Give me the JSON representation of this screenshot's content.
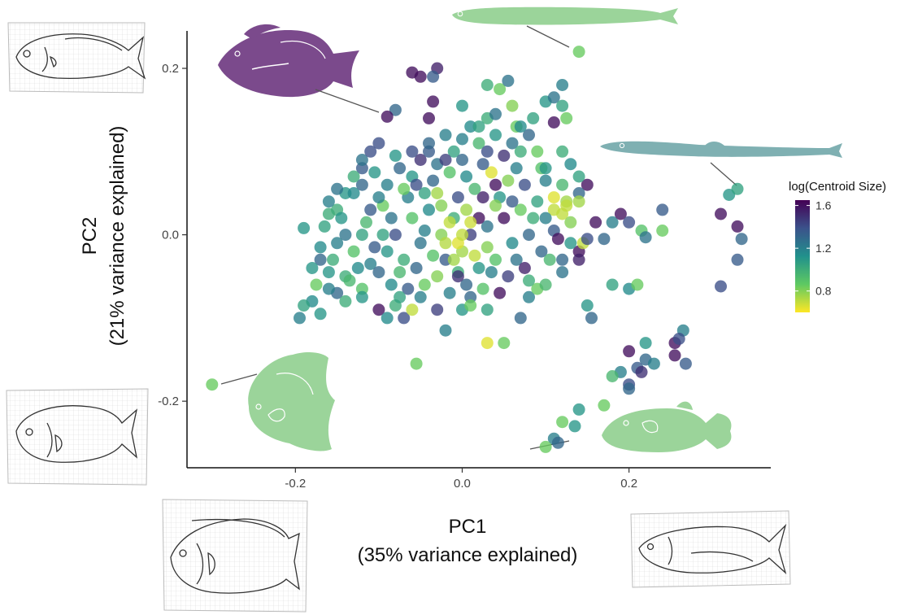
{
  "chart_data": {
    "type": "scatter",
    "title": "",
    "xlabel": "PC1",
    "xlabel_sub": "(35% variance explained)",
    "ylabel": "PC2",
    "ylabel_sub": "(21% variance explained)",
    "xlim": [
      -0.33,
      0.37
    ],
    "ylim": [
      -0.28,
      0.245
    ],
    "xticks": [
      -0.2,
      0.0,
      0.2
    ],
    "yticks": [
      -0.2,
      0.0,
      0.2
    ],
    "xtick_labels": [
      "-0.2",
      "0.0",
      "0.2"
    ],
    "ytick_labels": [
      "-0.2",
      "0.0",
      "0.2"
    ],
    "grid": false,
    "colorbar": {
      "title": "log(Centroid Size)",
      "range": [
        0.6,
        1.65
      ],
      "ticks": [
        0.8,
        1.2,
        1.6
      ],
      "tick_labels": [
        "0.8",
        "1.2",
        "1.6"
      ],
      "colormap": "viridis",
      "placement": "right"
    },
    "highlighted_points": [
      {
        "x": 0.14,
        "y": 0.22,
        "c": 0.85
      },
      {
        "x": -0.09,
        "y": 0.142,
        "c": 1.6
      },
      {
        "x": 0.33,
        "y": 0.055,
        "c": 1.05
      },
      {
        "x": -0.3,
        "y": -0.18,
        "c": 0.85
      },
      {
        "x": 0.1,
        "y": -0.255,
        "c": 0.85
      }
    ],
    "points": [
      {
        "x": -0.06,
        "y": 0.195,
        "c": 1.6
      },
      {
        "x": -0.05,
        "y": 0.19,
        "c": 1.6
      },
      {
        "x": -0.03,
        "y": 0.2,
        "c": 1.55
      },
      {
        "x": -0.035,
        "y": 0.19,
        "c": 1.35
      },
      {
        "x": -0.04,
        "y": 0.14,
        "c": 1.6
      },
      {
        "x": -0.035,
        "y": 0.16,
        "c": 1.6
      },
      {
        "x": -0.08,
        "y": 0.15,
        "c": 1.3
      },
      {
        "x": 0.0,
        "y": 0.155,
        "c": 1.1
      },
      {
        "x": 0.03,
        "y": 0.18,
        "c": 1.0
      },
      {
        "x": 0.045,
        "y": 0.175,
        "c": 0.85
      },
      {
        "x": 0.055,
        "y": 0.185,
        "c": 1.25
      },
      {
        "x": 0.06,
        "y": 0.155,
        "c": 0.8
      },
      {
        "x": 0.1,
        "y": 0.16,
        "c": 1.1
      },
      {
        "x": 0.11,
        "y": 0.165,
        "c": 1.25
      },
      {
        "x": 0.12,
        "y": 0.18,
        "c": 1.2
      },
      {
        "x": 0.12,
        "y": 0.155,
        "c": 1.05
      },
      {
        "x": 0.125,
        "y": 0.14,
        "c": 0.85
      },
      {
        "x": 0.085,
        "y": 0.14,
        "c": 1.05
      },
      {
        "x": 0.065,
        "y": 0.13,
        "c": 0.85
      },
      {
        "x": 0.11,
        "y": 0.135,
        "c": 1.6
      },
      {
        "x": 0.03,
        "y": 0.14,
        "c": 1.0
      },
      {
        "x": -0.1,
        "y": 0.11,
        "c": 1.4
      },
      {
        "x": -0.12,
        "y": 0.08,
        "c": 1.35
      },
      {
        "x": -0.14,
        "y": 0.05,
        "c": 1.1
      },
      {
        "x": -0.15,
        "y": 0.03,
        "c": 1.0
      },
      {
        "x": -0.16,
        "y": 0.04,
        "c": 1.2
      },
      {
        "x": -0.19,
        "y": 0.008,
        "c": 1.1
      },
      {
        "x": -0.165,
        "y": 0.01,
        "c": 1.05
      },
      {
        "x": -0.15,
        "y": -0.01,
        "c": 1.2
      },
      {
        "x": -0.17,
        "y": -0.03,
        "c": 1.3
      },
      {
        "x": -0.16,
        "y": -0.045,
        "c": 1.1
      },
      {
        "x": -0.175,
        "y": -0.06,
        "c": 0.85
      },
      {
        "x": -0.18,
        "y": -0.08,
        "c": 1.15
      },
      {
        "x": -0.19,
        "y": -0.085,
        "c": 1.05
      },
      {
        "x": -0.195,
        "y": -0.1,
        "c": 1.2
      },
      {
        "x": -0.17,
        "y": -0.095,
        "c": 1.1
      },
      {
        "x": -0.15,
        "y": -0.07,
        "c": 1.3
      },
      {
        "x": -0.14,
        "y": -0.05,
        "c": 1.0
      },
      {
        "x": -0.12,
        "y": -0.065,
        "c": 0.9
      },
      {
        "x": -0.1,
        "y": -0.09,
        "c": 1.6
      },
      {
        "x": -0.09,
        "y": -0.1,
        "c": 1.15
      },
      {
        "x": -0.08,
        "y": -0.085,
        "c": 1.0
      },
      {
        "x": -0.07,
        "y": -0.1,
        "c": 1.4
      },
      {
        "x": -0.06,
        "y": -0.09,
        "c": 0.7
      },
      {
        "x": -0.05,
        "y": -0.075,
        "c": 1.2
      },
      {
        "x": -0.03,
        "y": -0.09,
        "c": 1.45
      },
      {
        "x": -0.02,
        "y": -0.115,
        "c": 1.2
      },
      {
        "x": 0.0,
        "y": -0.09,
        "c": 1.1
      },
      {
        "x": 0.01,
        "y": -0.075,
        "c": 1.3
      },
      {
        "x": 0.03,
        "y": -0.09,
        "c": 1.05
      },
      {
        "x": 0.03,
        "y": -0.13,
        "c": 0.65
      },
      {
        "x": 0.05,
        "y": -0.13,
        "c": 0.85
      },
      {
        "x": -0.055,
        "y": -0.155,
        "c": 0.85
      },
      {
        "x": 0.07,
        "y": -0.1,
        "c": 1.3
      },
      {
        "x": 0.08,
        "y": -0.075,
        "c": 1.2
      },
      {
        "x": 0.09,
        "y": -0.065,
        "c": 0.85
      },
      {
        "x": 0.1,
        "y": -0.06,
        "c": 0.95
      },
      {
        "x": 0.08,
        "y": -0.055,
        "c": 1.0
      },
      {
        "x": 0.12,
        "y": -0.045,
        "c": 1.25
      },
      {
        "x": 0.15,
        "y": -0.085,
        "c": 1.1
      },
      {
        "x": 0.155,
        "y": -0.1,
        "c": 1.3
      },
      {
        "x": 0.18,
        "y": -0.06,
        "c": 1.05
      },
      {
        "x": 0.2,
        "y": -0.065,
        "c": 1.15
      },
      {
        "x": 0.21,
        "y": -0.06,
        "c": 0.85
      },
      {
        "x": 0.12,
        "y": -0.03,
        "c": 1.3
      },
      {
        "x": 0.14,
        "y": -0.02,
        "c": 1.6
      },
      {
        "x": 0.14,
        "y": -0.03,
        "c": 1.55
      },
      {
        "x": 0.145,
        "y": -0.01,
        "c": 0.7
      },
      {
        "x": 0.15,
        "y": -0.005,
        "c": 1.4
      },
      {
        "x": 0.16,
        "y": 0.015,
        "c": 1.6
      },
      {
        "x": 0.17,
        "y": -0.005,
        "c": 1.3
      },
      {
        "x": 0.18,
        "y": 0.015,
        "c": 1.2
      },
      {
        "x": 0.19,
        "y": 0.025,
        "c": 1.6
      },
      {
        "x": 0.2,
        "y": 0.015,
        "c": 1.4
      },
      {
        "x": 0.215,
        "y": 0.005,
        "c": 0.9
      },
      {
        "x": 0.22,
        "y": -0.003,
        "c": 1.25
      },
      {
        "x": 0.24,
        "y": 0.03,
        "c": 1.35
      },
      {
        "x": 0.24,
        "y": 0.005,
        "c": 0.85
      },
      {
        "x": 0.11,
        "y": 0.03,
        "c": 0.7
      },
      {
        "x": 0.12,
        "y": 0.025,
        "c": 0.7
      },
      {
        "x": 0.125,
        "y": 0.04,
        "c": 0.75
      },
      {
        "x": 0.13,
        "y": 0.015,
        "c": 0.8
      },
      {
        "x": 0.15,
        "y": 0.06,
        "c": 1.6
      },
      {
        "x": 0.14,
        "y": 0.07,
        "c": 1.05
      },
      {
        "x": 0.12,
        "y": 0.06,
        "c": 0.95
      },
      {
        "x": 0.1,
        "y": 0.065,
        "c": 1.2
      },
      {
        "x": 0.095,
        "y": 0.08,
        "c": 0.9
      },
      {
        "x": 0.11,
        "y": 0.005,
        "c": 1.35
      },
      {
        "x": 0.115,
        "y": -0.005,
        "c": 1.6
      },
      {
        "x": 0.11,
        "y": 0.045,
        "c": 0.65
      },
      {
        "x": 0.125,
        "y": 0.035,
        "c": 0.7
      },
      {
        "x": 0.31,
        "y": 0.025,
        "c": 1.6
      },
      {
        "x": 0.33,
        "y": 0.01,
        "c": 1.6
      },
      {
        "x": 0.335,
        "y": -0.005,
        "c": 1.3
      },
      {
        "x": 0.32,
        "y": 0.048,
        "c": 1.1
      },
      {
        "x": 0.33,
        "y": -0.03,
        "c": 1.35
      },
      {
        "x": 0.31,
        "y": -0.062,
        "c": 1.4
      },
      {
        "x": 0.2,
        "y": -0.14,
        "c": 1.6
      },
      {
        "x": 0.22,
        "y": -0.15,
        "c": 1.3
      },
      {
        "x": 0.22,
        "y": -0.13,
        "c": 1.1
      },
      {
        "x": 0.23,
        "y": -0.155,
        "c": 1.2
      },
      {
        "x": 0.21,
        "y": -0.16,
        "c": 1.35
      },
      {
        "x": 0.19,
        "y": -0.165,
        "c": 1.2
      },
      {
        "x": 0.18,
        "y": -0.17,
        "c": 0.95
      },
      {
        "x": 0.2,
        "y": -0.18,
        "c": 1.4
      },
      {
        "x": 0.2,
        "y": -0.185,
        "c": 1.3
      },
      {
        "x": 0.215,
        "y": -0.165,
        "c": 1.5
      },
      {
        "x": 0.255,
        "y": -0.13,
        "c": 1.6
      },
      {
        "x": 0.255,
        "y": -0.145,
        "c": 1.6
      },
      {
        "x": 0.265,
        "y": -0.115,
        "c": 1.2
      },
      {
        "x": 0.268,
        "y": -0.155,
        "c": 1.35
      },
      {
        "x": 0.26,
        "y": -0.125,
        "c": 1.4
      },
      {
        "x": 0.17,
        "y": -0.205,
        "c": 0.85
      },
      {
        "x": 0.14,
        "y": -0.21,
        "c": 1.1
      },
      {
        "x": 0.135,
        "y": -0.23,
        "c": 1.1
      },
      {
        "x": 0.12,
        "y": -0.225,
        "c": 0.85
      },
      {
        "x": 0.11,
        "y": -0.245,
        "c": 1.2
      },
      {
        "x": 0.115,
        "y": -0.25,
        "c": 1.3
      },
      {
        "x": -0.09,
        "y": 0.06,
        "c": 1.2
      },
      {
        "x": -0.075,
        "y": 0.08,
        "c": 1.3
      },
      {
        "x": -0.06,
        "y": 0.07,
        "c": 1.1
      },
      {
        "x": -0.05,
        "y": 0.09,
        "c": 1.5
      },
      {
        "x": -0.04,
        "y": 0.1,
        "c": 1.35
      },
      {
        "x": -0.03,
        "y": 0.085,
        "c": 1.25
      },
      {
        "x": -0.02,
        "y": 0.12,
        "c": 1.2
      },
      {
        "x": -0.01,
        "y": 0.1,
        "c": 1.05
      },
      {
        "x": 0.0,
        "y": 0.09,
        "c": 1.3
      },
      {
        "x": 0.01,
        "y": 0.13,
        "c": 1.15
      },
      {
        "x": 0.02,
        "y": 0.11,
        "c": 0.95
      },
      {
        "x": 0.03,
        "y": 0.1,
        "c": 1.4
      },
      {
        "x": 0.04,
        "y": 0.12,
        "c": 1.1
      },
      {
        "x": 0.05,
        "y": 0.095,
        "c": 1.5
      },
      {
        "x": 0.06,
        "y": 0.11,
        "c": 1.25
      },
      {
        "x": 0.07,
        "y": 0.1,
        "c": 1.0
      },
      {
        "x": 0.08,
        "y": 0.12,
        "c": 1.3
      },
      {
        "x": 0.09,
        "y": 0.1,
        "c": 0.85
      },
      {
        "x": 0.035,
        "y": 0.075,
        "c": 0.65
      },
      {
        "x": 0.04,
        "y": 0.06,
        "c": 1.6
      },
      {
        "x": 0.025,
        "y": 0.045,
        "c": 1.55
      },
      {
        "x": -0.11,
        "y": 0.03,
        "c": 1.35
      },
      {
        "x": -0.12,
        "y": 0.0,
        "c": 1.05
      },
      {
        "x": -0.13,
        "y": -0.02,
        "c": 0.9
      },
      {
        "x": -0.11,
        "y": -0.035,
        "c": 1.2
      },
      {
        "x": -0.1,
        "y": -0.045,
        "c": 1.3
      },
      {
        "x": -0.09,
        "y": -0.02,
        "c": 1.1
      },
      {
        "x": -0.08,
        "y": 0.0,
        "c": 1.4
      },
      {
        "x": -0.07,
        "y": -0.03,
        "c": 1.0
      },
      {
        "x": -0.06,
        "y": 0.02,
        "c": 0.9
      },
      {
        "x": -0.05,
        "y": -0.01,
        "c": 1.25
      },
      {
        "x": -0.04,
        "y": 0.03,
        "c": 1.15
      },
      {
        "x": -0.03,
        "y": -0.05,
        "c": 0.8
      },
      {
        "x": -0.02,
        "y": -0.03,
        "c": 1.35
      },
      {
        "x": -0.01,
        "y": 0.02,
        "c": 1.0
      },
      {
        "x": 0.0,
        "y": -0.02,
        "c": 0.75
      },
      {
        "x": 0.01,
        "y": 0.0,
        "c": 1.45
      },
      {
        "x": 0.02,
        "y": -0.04,
        "c": 1.1
      },
      {
        "x": 0.03,
        "y": 0.01,
        "c": 1.25
      },
      {
        "x": 0.04,
        "y": -0.03,
        "c": 0.9
      },
      {
        "x": 0.05,
        "y": 0.02,
        "c": 1.6
      },
      {
        "x": 0.06,
        "y": -0.01,
        "c": 1.15
      },
      {
        "x": 0.07,
        "y": 0.03,
        "c": 0.85
      },
      {
        "x": 0.08,
        "y": 0.0,
        "c": 1.3
      },
      {
        "x": 0.09,
        "y": 0.04,
        "c": 1.05
      },
      {
        "x": 0.1,
        "y": 0.02,
        "c": 1.2
      },
      {
        "x": -0.13,
        "y": 0.05,
        "c": 1.15
      },
      {
        "x": -0.14,
        "y": 0.0,
        "c": 1.25
      },
      {
        "x": -0.155,
        "y": -0.03,
        "c": 1.0
      },
      {
        "x": -0.135,
        "y": -0.055,
        "c": 0.95
      },
      {
        "x": -0.145,
        "y": 0.02,
        "c": 1.1
      },
      {
        "x": -0.12,
        "y": 0.06,
        "c": 1.3
      },
      {
        "x": -0.105,
        "y": 0.075,
        "c": 1.1
      },
      {
        "x": -0.095,
        "y": 0.035,
        "c": 0.85
      },
      {
        "x": -0.085,
        "y": -0.06,
        "c": 1.15
      },
      {
        "x": -0.075,
        "y": -0.045,
        "c": 0.95
      },
      {
        "x": -0.065,
        "y": -0.065,
        "c": 1.35
      },
      {
        "x": -0.045,
        "y": -0.06,
        "c": 0.85
      },
      {
        "x": -0.035,
        "y": -0.025,
        "c": 0.9
      },
      {
        "x": -0.025,
        "y": 0.0,
        "c": 0.8
      },
      {
        "x": -0.015,
        "y": -0.07,
        "c": 1.2
      },
      {
        "x": -0.005,
        "y": -0.045,
        "c": 1.0
      },
      {
        "x": 0.005,
        "y": -0.06,
        "c": 1.3
      },
      {
        "x": 0.015,
        "y": -0.025,
        "c": 0.7
      },
      {
        "x": 0.025,
        "y": -0.065,
        "c": 0.9
      },
      {
        "x": 0.035,
        "y": -0.045,
        "c": 1.2
      },
      {
        "x": 0.045,
        "y": -0.07,
        "c": 1.6
      },
      {
        "x": 0.055,
        "y": -0.05,
        "c": 1.45
      },
      {
        "x": 0.065,
        "y": -0.03,
        "c": 1.25
      },
      {
        "x": 0.075,
        "y": -0.04,
        "c": 1.55
      },
      {
        "x": -0.005,
        "y": -0.01,
        "c": 0.65
      },
      {
        "x": -0.015,
        "y": 0.015,
        "c": 0.7
      },
      {
        "x": 0.005,
        "y": 0.03,
        "c": 0.75
      },
      {
        "x": -0.025,
        "y": 0.035,
        "c": 0.8
      },
      {
        "x": 0.015,
        "y": 0.055,
        "c": 0.95
      },
      {
        "x": -0.045,
        "y": 0.05,
        "c": 1.05
      },
      {
        "x": -0.065,
        "y": 0.045,
        "c": 1.2
      },
      {
        "x": -0.055,
        "y": 0.06,
        "c": 1.4
      },
      {
        "x": -0.035,
        "y": 0.065,
        "c": 1.3
      },
      {
        "x": -0.015,
        "y": 0.075,
        "c": 0.9
      },
      {
        "x": 0.005,
        "y": 0.07,
        "c": 1.15
      },
      {
        "x": 0.025,
        "y": 0.085,
        "c": 1.35
      },
      {
        "x": 0.045,
        "y": 0.045,
        "c": 1.1
      },
      {
        "x": 0.055,
        "y": 0.065,
        "c": 0.8
      },
      {
        "x": 0.065,
        "y": 0.08,
        "c": 1.2
      },
      {
        "x": 0.075,
        "y": 0.06,
        "c": 1.4
      },
      {
        "x": 0.085,
        "y": 0.02,
        "c": 1.0
      },
      {
        "x": 0.095,
        "y": -0.02,
        "c": 1.3
      },
      {
        "x": 0.105,
        "y": -0.03,
        "c": 0.95
      },
      {
        "x": -0.085,
        "y": 0.02,
        "c": 1.25
      },
      {
        "x": -0.095,
        "y": 0.0,
        "c": 1.05
      },
      {
        "x": -0.105,
        "y": -0.015,
        "c": 1.35
      },
      {
        "x": -0.115,
        "y": 0.015,
        "c": 0.95
      },
      {
        "x": -0.125,
        "y": -0.04,
        "c": 1.15
      },
      {
        "x": -0.075,
        "y": -0.075,
        "c": 1.05
      },
      {
        "x": -0.055,
        "y": -0.04,
        "c": 1.3
      },
      {
        "x": -0.045,
        "y": 0.005,
        "c": 1.2
      },
      {
        "x": -0.005,
        "y": 0.045,
        "c": 1.4
      },
      {
        "x": 0.01,
        "y": -0.085,
        "c": 0.85
      },
      {
        "x": 0.04,
        "y": 0.035,
        "c": 0.8
      },
      {
        "x": -0.03,
        "y": 0.05,
        "c": 0.75
      },
      {
        "x": 0.02,
        "y": 0.02,
        "c": 1.6
      },
      {
        "x": 0.0,
        "y": 0.0,
        "c": 0.7
      },
      {
        "x": -0.01,
        "y": -0.03,
        "c": 0.75
      },
      {
        "x": 0.03,
        "y": -0.015,
        "c": 0.8
      },
      {
        "x": -0.02,
        "y": -0.01,
        "c": 0.72
      },
      {
        "x": 0.01,
        "y": 0.015,
        "c": 0.68
      },
      {
        "x": -0.005,
        "y": -0.05,
        "c": 1.5
      },
      {
        "x": 0.06,
        "y": 0.04,
        "c": 1.35
      },
      {
        "x": -0.07,
        "y": 0.055,
        "c": 0.85
      },
      {
        "x": -0.1,
        "y": 0.045,
        "c": 1.2
      },
      {
        "x": -0.06,
        "y": 0.1,
        "c": 1.4
      },
      {
        "x": -0.08,
        "y": 0.095,
        "c": 1.1
      },
      {
        "x": -0.04,
        "y": 0.11,
        "c": 1.3
      },
      {
        "x": -0.02,
        "y": 0.09,
        "c": 1.45
      },
      {
        "x": 0.0,
        "y": 0.115,
        "c": 1.2
      },
      {
        "x": 0.02,
        "y": 0.13,
        "c": 1.05
      },
      {
        "x": 0.04,
        "y": 0.145,
        "c": 1.25
      },
      {
        "x": 0.07,
        "y": 0.13,
        "c": 1.15
      },
      {
        "x": -0.12,
        "y": 0.09,
        "c": 1.25
      },
      {
        "x": -0.11,
        "y": 0.1,
        "c": 1.4
      },
      {
        "x": -0.13,
        "y": 0.07,
        "c": 1.0
      },
      {
        "x": -0.15,
        "y": 0.055,
        "c": 1.25
      },
      {
        "x": -0.16,
        "y": 0.025,
        "c": 1.0
      },
      {
        "x": -0.17,
        "y": -0.015,
        "c": 1.15
      },
      {
        "x": -0.18,
        "y": -0.04,
        "c": 1.1
      },
      {
        "x": -0.16,
        "y": -0.065,
        "c": 1.2
      },
      {
        "x": -0.14,
        "y": -0.08,
        "c": 1.0
      },
      {
        "x": -0.12,
        "y": -0.075,
        "c": 1.1
      },
      {
        "x": 0.12,
        "y": 0.1,
        "c": 1.0
      },
      {
        "x": 0.13,
        "y": 0.085,
        "c": 1.15
      },
      {
        "x": 0.14,
        "y": 0.05,
        "c": 1.3
      },
      {
        "x": 0.13,
        "y": -0.01,
        "c": 1.1
      },
      {
        "x": 0.14,
        "y": 0.04,
        "c": 0.75
      },
      {
        "x": 0.1,
        "y": 0.08,
        "c": 1.1
      }
    ]
  }
}
